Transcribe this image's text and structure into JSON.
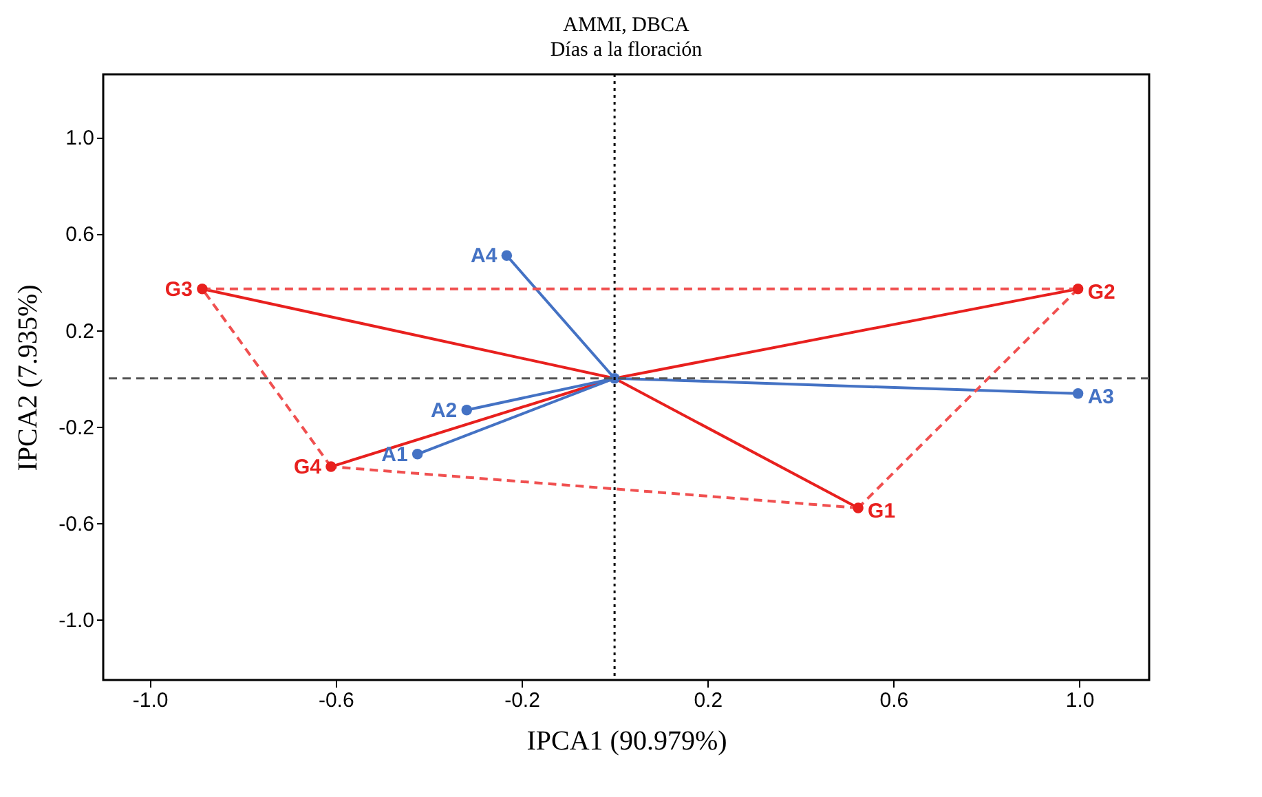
{
  "chart_data": {
    "type": "scatter",
    "title": "AMMI, DBCA",
    "subtitle": "Días a la floración",
    "xlabel": "IPCA1 (90.979%)",
    "ylabel": "IPCA2 (7.935%)",
    "xlim": [
      -1.1,
      1.15
    ],
    "ylim": [
      -1.25,
      1.26
    ],
    "xticks": [
      {
        "value": -1.0,
        "label": "-1.0"
      },
      -0.6,
      -0.2,
      0.2,
      0.6,
      {
        "value": 1.0,
        "label": "1.0"
      }
    ],
    "yticks": [
      {
        "value": 1.0,
        "label": "1.0"
      },
      0.6,
      0.2,
      -0.2,
      -0.6,
      {
        "value": -1.0,
        "label": "-1.0"
      }
    ],
    "grid": false,
    "series": [
      {
        "type": "line",
        "color": "#e8201e",
        "line_style": "solid",
        "marker": "none",
        "x": [
          -0.887,
          0,
          0.997,
          0,
          -0.61,
          0,
          0.524
        ],
        "values": [
          0.371,
          0,
          0.371,
          0,
          -0.366,
          0,
          -0.537
        ]
      },
      {
        "type": "line",
        "color": "#4472c4",
        "line_style": "solid",
        "marker": "none",
        "x": [
          -0.232,
          0,
          -0.318,
          0,
          -0.424,
          0,
          0.997
        ],
        "values": [
          0.509,
          0,
          -0.131,
          0,
          -0.314,
          0,
          -0.063
        ]
      },
      {
        "type": "line",
        "color": "#f05050",
        "line_style": "dashed",
        "marker": "none",
        "x": [
          -0.887,
          0.997
        ],
        "values": [
          0.371,
          0.371
        ]
      },
      {
        "type": "line",
        "color": "#f05050",
        "line_style": "dashed",
        "marker": "none",
        "x": [
          0.997,
          0.524
        ],
        "values": [
          0.371,
          -0.537
        ]
      },
      {
        "type": "line",
        "color": "#f05050",
        "line_style": "dashed",
        "marker": "none",
        "x": [
          0.524,
          -0.61
        ],
        "values": [
          -0.537,
          -0.366
        ]
      },
      {
        "type": "line",
        "color": "#f05050",
        "line_style": "dashed",
        "marker": "none",
        "x": [
          -0.61,
          -0.887
        ],
        "values": [
          -0.366,
          0.371
        ]
      },
      {
        "type": "scatter",
        "color": "#e8201e",
        "marker": "circle",
        "x": [
          0.524,
          0.997,
          -0.887,
          -0.61
        ],
        "values": [
          -0.537,
          0.371,
          0.371,
          -0.366
        ]
      },
      {
        "type": "scatter",
        "color": "#4472c4",
        "marker": "circle",
        "x": [
          -0.424,
          -0.318,
          0.997,
          -0.232,
          0
        ],
        "values": [
          -0.314,
          -0.131,
          -0.063,
          0.509,
          0
        ]
      }
    ],
    "annotations": [
      {
        "text": "G1",
        "x": 0.524,
        "y": -0.537
      },
      {
        "text": "G2",
        "x": 0.997,
        "y": 0.371
      },
      {
        "text": "G3",
        "x": -0.887,
        "y": 0.371
      },
      {
        "text": "G4",
        "x": -0.61,
        "y": -0.366
      },
      {
        "text": "A1",
        "x": -0.424,
        "y": -0.314
      },
      {
        "text": "A2",
        "x": -0.318,
        "y": -0.131
      },
      {
        "text": "A3",
        "x": 0.997,
        "y": -0.063
      },
      {
        "text": "A4",
        "x": -0.232,
        "y": 0.509
      }
    ],
    "ref_lines": [
      {
        "axis": "x",
        "value": 0,
        "color": "#000000",
        "line_style": "dotted"
      },
      {
        "axis": "y",
        "value": 0,
        "color": "#555555",
        "line_style": "dashed"
      }
    ]
  }
}
